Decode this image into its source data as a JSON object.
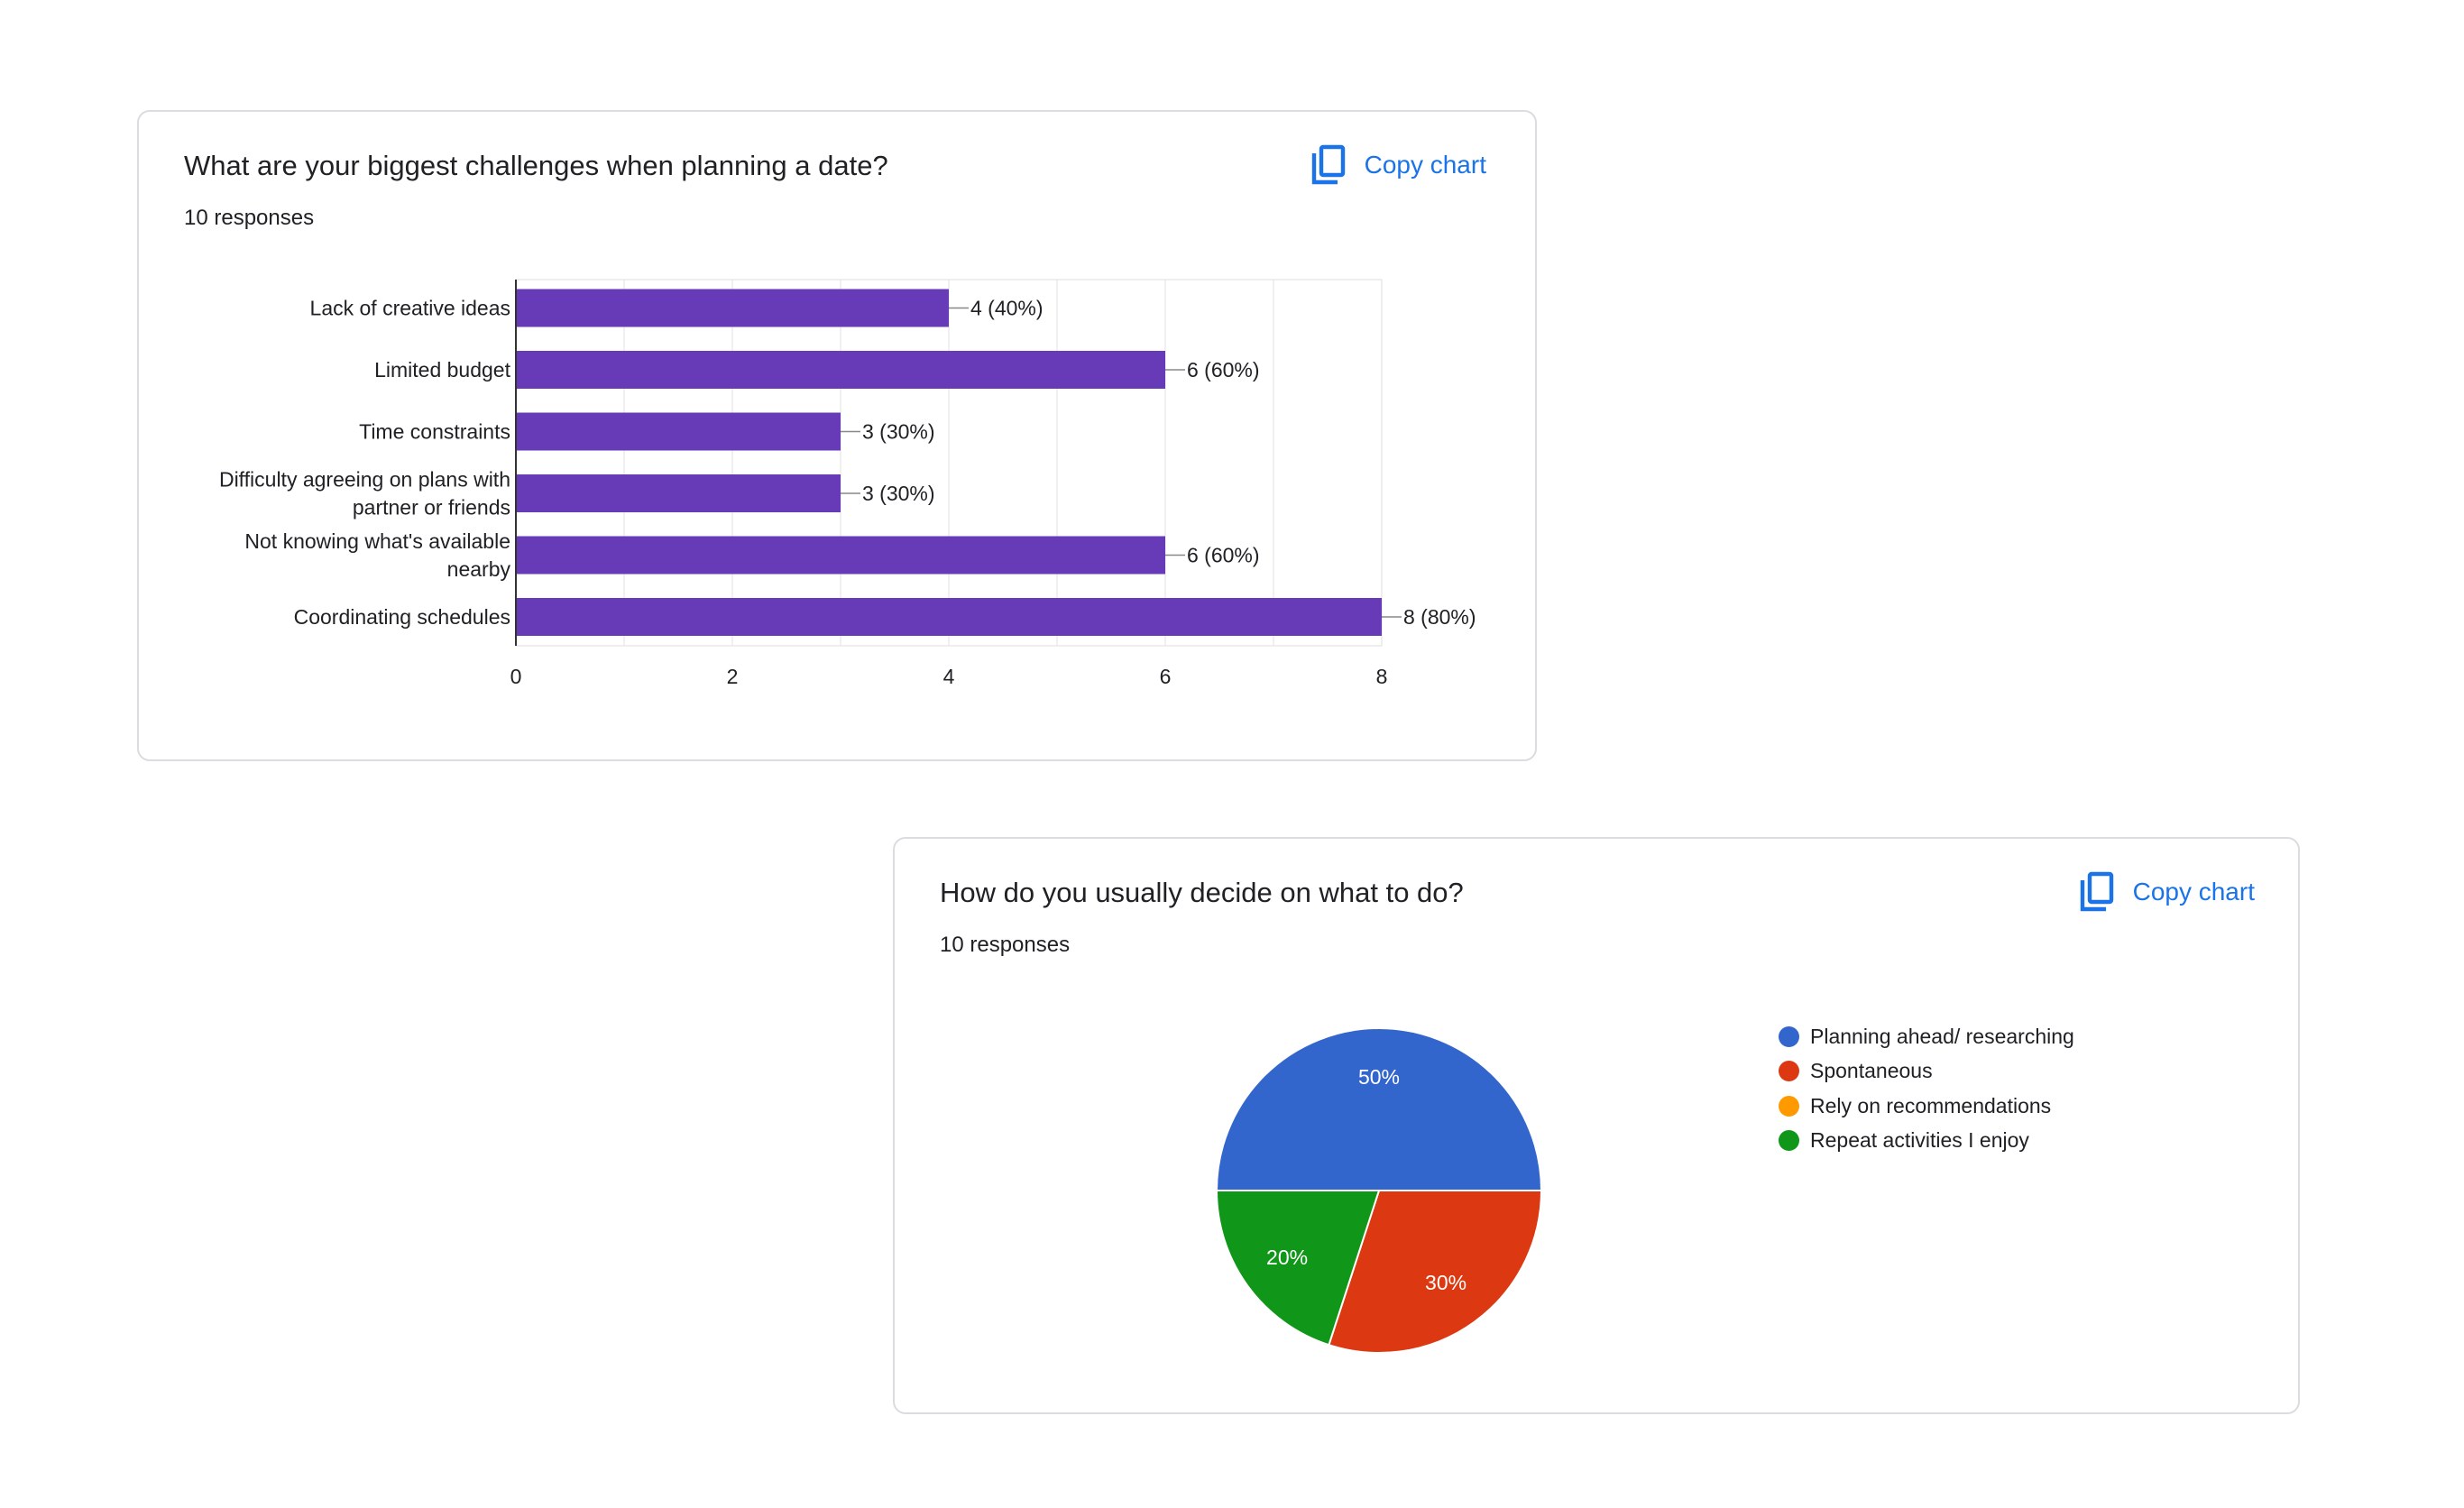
{
  "charts": [
    {
      "question": "What are your biggest challenges when planning a date?",
      "responses": "10 responses",
      "copy_label": "Copy chart",
      "copy_icon": "copy-icon"
    },
    {
      "question": "How do you usually decide on what to do?",
      "responses": "10 responses",
      "copy_label": "Copy chart",
      "copy_icon": "copy-icon"
    }
  ],
  "chart_data": [
    {
      "type": "bar",
      "orientation": "horizontal",
      "categories": [
        "Lack of creative ideas",
        "Limited budget",
        "Time constraints",
        "Difficulty agreeing on plans with partner or friends",
        "Not knowing what's available nearby",
        "Coordinating schedules"
      ],
      "category_lines": [
        [
          "Lack of creative ideas"
        ],
        [
          "Limited budget"
        ],
        [
          "Time constraints"
        ],
        [
          "Difficulty agreeing on plans with",
          "partner or friends"
        ],
        [
          "Not knowing what's available",
          "nearby"
        ],
        [
          "Coordinating schedules"
        ]
      ],
      "values": [
        4,
        6,
        3,
        3,
        6,
        8
      ],
      "data_labels": [
        "4 (40%)",
        "6 (60%)",
        "3 (30%)",
        "3 (30%)",
        "6 (60%)",
        "8 (80%)"
      ],
      "xticks": [
        0,
        2,
        4,
        6,
        8
      ],
      "xlim": [
        0,
        8
      ],
      "grid": true,
      "color": "#673ab7"
    },
    {
      "type": "pie",
      "series": [
        {
          "name": "Planning ahead/ researching",
          "value": 50,
          "label": "50%",
          "color": "#3366cc"
        },
        {
          "name": "Spontaneous",
          "value": 30,
          "label": "30%",
          "color": "#dc3912"
        },
        {
          "name": "Rely on recommendations",
          "value": 0,
          "label": "",
          "color": "#ff9900"
        },
        {
          "name": "Repeat activities I enjoy",
          "value": 20,
          "label": "20%",
          "color": "#109618"
        }
      ],
      "legend_position": "right"
    }
  ]
}
